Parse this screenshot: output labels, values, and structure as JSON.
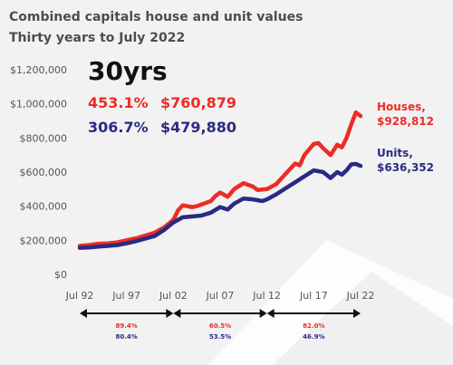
{
  "header": {
    "title": "Combined capitals house and unit values",
    "subtitle": "Thirty years to July 2022",
    "headline": "30yrs"
  },
  "summary": {
    "houses_pct": "453.1%",
    "houses_change": "$760,879",
    "units_pct": "306.7%",
    "units_change": "$479,880"
  },
  "colors": {
    "houses": "#ee2b24",
    "units": "#2a2a85",
    "text": "#4d4d4d"
  },
  "chart_data": {
    "type": "line",
    "yticks": [
      "$0",
      "$200,000",
      "$400,000",
      "$600,000",
      "$800,000",
      "$1,000,000",
      "$1,200,000"
    ],
    "ylim": [
      0,
      1200000
    ],
    "xticks": [
      "Jul 92",
      "Jul 97",
      "Jul 02",
      "Jul 07",
      "Jul 12",
      "Jul 17",
      "Jul 22"
    ],
    "xlim": [
      1992.5,
      2022.5
    ],
    "series": [
      {
        "name": "Houses",
        "end_label": "Houses,",
        "end_value": "$928,812",
        "color": "#ee2b24",
        "points": [
          [
            1992.5,
            168000
          ],
          [
            1993.5,
            172000
          ],
          [
            1994.5,
            180000
          ],
          [
            1995.5,
            182000
          ],
          [
            1996.5,
            188000
          ],
          [
            1997.5,
            200000
          ],
          [
            1998.5,
            212000
          ],
          [
            1999.5,
            228000
          ],
          [
            2000.5,
            245000
          ],
          [
            2001.5,
            275000
          ],
          [
            2002.5,
            320000
          ],
          [
            2003.0,
            375000
          ],
          [
            2003.5,
            405000
          ],
          [
            2004.5,
            395000
          ],
          [
            2005.0,
            400000
          ],
          [
            2005.5,
            410000
          ],
          [
            2006.5,
            430000
          ],
          [
            2007.0,
            460000
          ],
          [
            2007.5,
            480000
          ],
          [
            2008.3,
            455000
          ],
          [
            2009.0,
            500000
          ],
          [
            2010.0,
            535000
          ],
          [
            2011.0,
            515000
          ],
          [
            2011.5,
            495000
          ],
          [
            2012.5,
            500000
          ],
          [
            2013.5,
            530000
          ],
          [
            2014.5,
            590000
          ],
          [
            2015.5,
            650000
          ],
          [
            2016.0,
            640000
          ],
          [
            2016.5,
            700000
          ],
          [
            2017.5,
            765000
          ],
          [
            2018.0,
            770000
          ],
          [
            2018.5,
            740000
          ],
          [
            2019.3,
            700000
          ],
          [
            2020.0,
            760000
          ],
          [
            2020.5,
            745000
          ],
          [
            2021.0,
            800000
          ],
          [
            2021.5,
            880000
          ],
          [
            2022.0,
            950000
          ],
          [
            2022.5,
            928812
          ]
        ]
      },
      {
        "name": "Units",
        "end_label": "Units,",
        "end_value": "$636,352",
        "color": "#2a2a85",
        "points": [
          [
            1992.5,
            156000
          ],
          [
            1993.5,
            158000
          ],
          [
            1994.5,
            163000
          ],
          [
            1995.5,
            167000
          ],
          [
            1996.5,
            172000
          ],
          [
            1997.5,
            182000
          ],
          [
            1998.5,
            195000
          ],
          [
            1999.5,
            210000
          ],
          [
            2000.5,
            225000
          ],
          [
            2001.5,
            260000
          ],
          [
            2002.5,
            305000
          ],
          [
            2003.5,
            335000
          ],
          [
            2004.5,
            340000
          ],
          [
            2005.5,
            345000
          ],
          [
            2006.5,
            362000
          ],
          [
            2007.5,
            395000
          ],
          [
            2008.3,
            380000
          ],
          [
            2009.0,
            415000
          ],
          [
            2010.0,
            445000
          ],
          [
            2011.0,
            440000
          ],
          [
            2012.0,
            430000
          ],
          [
            2012.5,
            440000
          ],
          [
            2013.5,
            470000
          ],
          [
            2014.5,
            505000
          ],
          [
            2015.5,
            540000
          ],
          [
            2016.5,
            575000
          ],
          [
            2017.5,
            610000
          ],
          [
            2018.5,
            600000
          ],
          [
            2019.3,
            565000
          ],
          [
            2020.0,
            600000
          ],
          [
            2020.5,
            585000
          ],
          [
            2021.0,
            610000
          ],
          [
            2021.5,
            645000
          ],
          [
            2022.0,
            648000
          ],
          [
            2022.5,
            636352
          ]
        ]
      }
    ],
    "periods": [
      {
        "from": "Jul 92",
        "to": "Jul 02",
        "houses_growth": "89.4%",
        "units_growth": "80.4%"
      },
      {
        "from": "Jul 02",
        "to": "Jul 12",
        "houses_growth": "60.5%",
        "units_growth": "53.5%"
      },
      {
        "from": "Jul 12",
        "to": "Jul 22",
        "houses_growth": "82.0%",
        "units_growth": "46.9%"
      }
    ]
  }
}
